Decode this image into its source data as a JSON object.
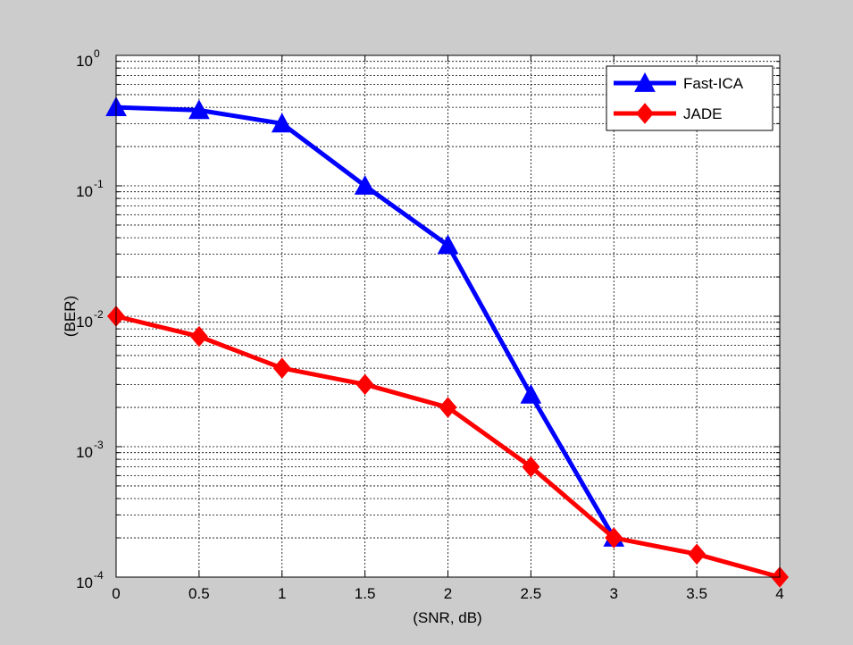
{
  "chart_data": {
    "type": "line",
    "xlabel": "(SNR, dB)",
    "ylabel": "(BER)",
    "xlim": [
      0,
      4
    ],
    "ylim": [
      0.0001,
      1
    ],
    "yscale": "log",
    "grid": true,
    "legend_position": "top-right",
    "x_ticks": [
      "0",
      "0.5",
      "1",
      "1.5",
      "2",
      "2.5",
      "3",
      "3.5",
      "4"
    ],
    "y_ticks": [
      {
        "base": "10",
        "exp": "0"
      },
      {
        "base": "10",
        "exp": "-1"
      },
      {
        "base": "10",
        "exp": "-2"
      },
      {
        "base": "10",
        "exp": "-3"
      },
      {
        "base": "10",
        "exp": "-4"
      }
    ],
    "series": [
      {
        "name": "Fast-ICA",
        "color": "#0000ff",
        "marker": "triangle",
        "x": [
          0,
          0.5,
          1,
          1.5,
          2,
          2.5,
          3
        ],
        "y": [
          0.4,
          0.38,
          0.3,
          0.1,
          0.035,
          0.0025,
          0.0002
        ]
      },
      {
        "name": "JADE",
        "color": "#ff0000",
        "marker": "diamond",
        "x": [
          0,
          0.5,
          1,
          1.5,
          2,
          2.5,
          3,
          3.5,
          4
        ],
        "y": [
          0.01,
          0.007,
          0.004,
          0.003,
          0.002,
          0.0007,
          0.0002,
          0.00015,
          0.0001
        ]
      }
    ]
  }
}
